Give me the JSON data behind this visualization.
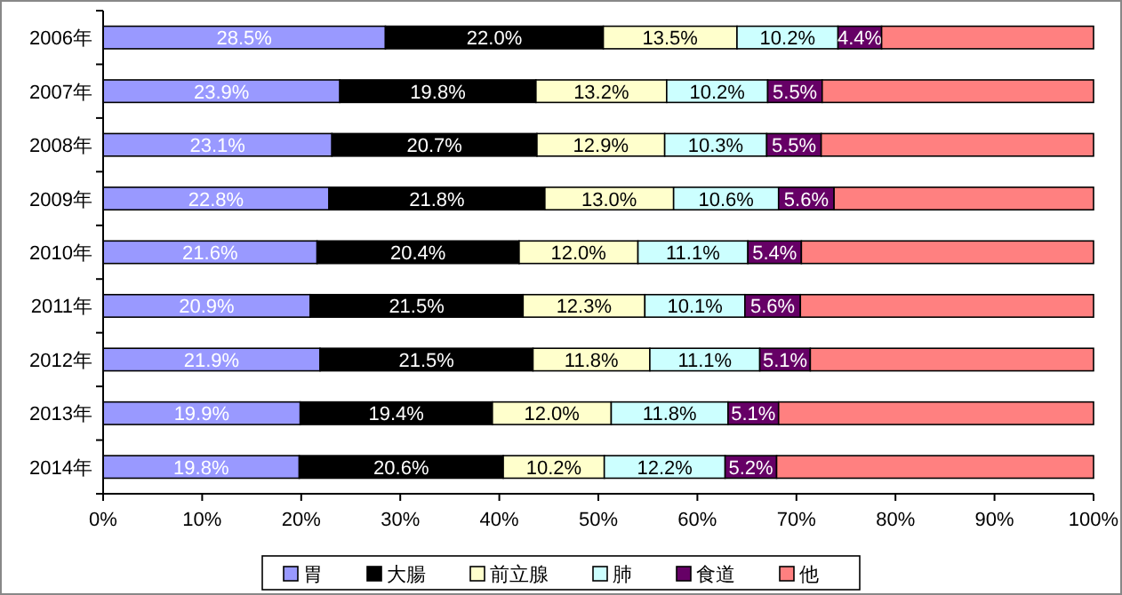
{
  "chart_data": {
    "type": "bar",
    "orientation": "horizontal",
    "stacked": true,
    "categories": [
      "2006年",
      "2007年",
      "2008年",
      "2009年",
      "2010年",
      "2011年",
      "2012年",
      "2013年",
      "2014年"
    ],
    "series": [
      {
        "name": "胃",
        "color": "#9999ff",
        "values": [
          28.5,
          23.9,
          23.1,
          22.8,
          21.6,
          20.9,
          21.9,
          19.9,
          19.8
        ],
        "value_labels": [
          "28.5%",
          "23.9%",
          "23.1%",
          "22.8%",
          "21.6%",
          "20.9%",
          "21.9%",
          "19.9%",
          "19.8%"
        ]
      },
      {
        "name": "大腸",
        "color": "#000000",
        "values": [
          22.0,
          19.8,
          20.7,
          21.8,
          20.4,
          21.5,
          21.5,
          19.4,
          20.6
        ],
        "value_labels": [
          "22.0%",
          "19.8%",
          "20.7%",
          "21.8%",
          "20.4%",
          "21.5%",
          "21.5%",
          "19.4%",
          "20.6%"
        ]
      },
      {
        "name": "前立腺",
        "color": "#ffffcc",
        "values": [
          13.5,
          13.2,
          12.9,
          13.0,
          12.0,
          12.3,
          11.8,
          12.0,
          10.2
        ],
        "value_labels": [
          "13.5%",
          "13.2%",
          "12.9%",
          "13.0%",
          "12.0%",
          "12.3%",
          "11.8%",
          "12.0%",
          "10.2%"
        ]
      },
      {
        "name": "肺",
        "color": "#ccffff",
        "values": [
          10.2,
          10.2,
          10.3,
          10.6,
          11.1,
          10.1,
          11.1,
          11.8,
          12.2
        ],
        "value_labels": [
          "10.2%",
          "10.2%",
          "10.3%",
          "10.6%",
          "11.1%",
          "10.1%",
          "11.1%",
          "11.8%",
          "12.2%"
        ]
      },
      {
        "name": "食道",
        "color": "#660066",
        "values": [
          4.4,
          5.5,
          5.5,
          5.6,
          5.4,
          5.6,
          5.1,
          5.1,
          5.2
        ],
        "value_labels": [
          "4.4%",
          "5.5%",
          "5.5%",
          "5.6%",
          "5.4%",
          "5.6%",
          "5.1%",
          "5.1%",
          "5.2%"
        ]
      },
      {
        "name": "他",
        "color": "#ff8080",
        "values": [
          21.4,
          27.4,
          27.5,
          26.2,
          29.5,
          29.6,
          28.6,
          31.8,
          32.0
        ],
        "value_labels": [
          null,
          null,
          null,
          null,
          null,
          null,
          null,
          null,
          null
        ]
      }
    ],
    "xlim": [
      0,
      100
    ],
    "xticks": [
      {
        "value": 0,
        "label": "0%"
      },
      {
        "value": 10,
        "label": "10%"
      },
      {
        "value": 20,
        "label": "20%"
      },
      {
        "value": 30,
        "label": "30%"
      },
      {
        "value": 40,
        "label": "40%"
      },
      {
        "value": 50,
        "label": "50%"
      },
      {
        "value": 60,
        "label": "60%"
      },
      {
        "value": 70,
        "label": "70%"
      },
      {
        "value": 80,
        "label": "80%"
      },
      {
        "value": 90,
        "label": "90%"
      },
      {
        "value": 100,
        "label": "100%"
      }
    ],
    "legend": "bottom"
  }
}
